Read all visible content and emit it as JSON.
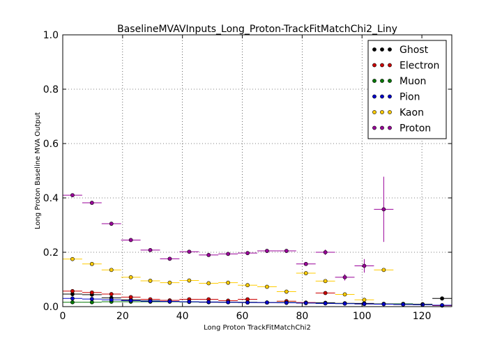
{
  "chart_data": {
    "type": "scatter",
    "title": "BaselineMVAVInputs_Long_Proton-TrackFitMatchChi2_Liny",
    "xlabel": "Long Proton TrackFitMatchChi2",
    "ylabel": "Long Proton Baseline MVA Output",
    "xlim": [
      0,
      130
    ],
    "ylim": [
      0,
      1.0
    ],
    "xticks": [
      "0",
      "20",
      "40",
      "60",
      "80",
      "100",
      "120"
    ],
    "yticks": [
      "0.0",
      "0.2",
      "0.4",
      "0.6",
      "0.8",
      "1.0"
    ],
    "grid": true,
    "legend_position": "top-right",
    "bin_edges": [
      0,
      6.5,
      13,
      19.5,
      26,
      32.5,
      39,
      45.5,
      52,
      58.5,
      65,
      71.5,
      78,
      84.5,
      91,
      97.5,
      104,
      110.5,
      117,
      123.5,
      130
    ],
    "series": [
      {
        "name": "Ghost",
        "color": "#000000",
        "values": [
          0.046,
          0.044,
          0.032,
          0.025,
          0.021,
          0.019,
          0.018,
          0.016,
          0.016,
          0.016,
          0.015,
          0.014,
          0.014,
          0.014,
          0.012,
          0.012,
          0.01,
          0.01,
          0.009,
          0.03,
          0.005
        ],
        "errors": [
          0.002,
          0.002,
          0.002,
          0.002,
          0.002,
          0.002,
          0.002,
          0.002,
          0.002,
          0.002,
          0.002,
          0.002,
          0.002,
          0.002,
          0.002,
          0.002,
          0.002,
          0.002,
          0.002,
          0.004,
          0.002
        ]
      },
      {
        "name": "Electron",
        "color": "#cc0000",
        "values": [
          0.057,
          0.052,
          0.046,
          0.035,
          0.027,
          0.023,
          0.027,
          0.027,
          0.022,
          0.027,
          0.015,
          0.02,
          0.015,
          0.05,
          0.012,
          0.01,
          0.01,
          0.008,
          0.008,
          0.004,
          0.004
        ],
        "errors": [
          0.003,
          0.003,
          0.003,
          0.003,
          0.003,
          0.003,
          0.003,
          0.003,
          0.003,
          0.003,
          0.003,
          0.003,
          0.003,
          0.005,
          0.003,
          0.003,
          0.003,
          0.003,
          0.003,
          0.003,
          0.003
        ]
      },
      {
        "name": "Muon",
        "color": "#007700",
        "values": [
          0.016,
          0.016,
          0.018,
          0.018,
          0.018,
          0.018,
          0.017,
          0.017,
          0.016,
          0.015,
          0.015,
          0.015,
          0.013,
          0.012,
          0.012,
          0.01,
          0.01,
          0.01,
          0.008,
          0.005,
          0.004
        ],
        "errors": [
          0.002,
          0.002,
          0.002,
          0.002,
          0.002,
          0.002,
          0.002,
          0.002,
          0.002,
          0.002,
          0.002,
          0.002,
          0.002,
          0.002,
          0.002,
          0.002,
          0.002,
          0.002,
          0.002,
          0.002,
          0.002
        ]
      },
      {
        "name": "Pion",
        "color": "#0000cc",
        "values": [
          0.03,
          0.028,
          0.025,
          0.022,
          0.02,
          0.019,
          0.018,
          0.017,
          0.016,
          0.015,
          0.015,
          0.014,
          0.013,
          0.012,
          0.011,
          0.01,
          0.009,
          0.008,
          0.007,
          0.005,
          0.004
        ],
        "errors": [
          0.001,
          0.001,
          0.001,
          0.001,
          0.001,
          0.001,
          0.001,
          0.001,
          0.001,
          0.001,
          0.001,
          0.001,
          0.001,
          0.001,
          0.001,
          0.001,
          0.001,
          0.001,
          0.001,
          0.001,
          0.001
        ]
      },
      {
        "name": "Kaon",
        "color": "#ffcc00",
        "values": [
          0.175,
          0.157,
          0.135,
          0.108,
          0.095,
          0.088,
          0.096,
          0.086,
          0.088,
          0.079,
          0.073,
          0.055,
          0.123,
          0.094,
          0.045,
          0.025,
          0.135
        ],
        "errors": [
          0.004,
          0.004,
          0.004,
          0.004,
          0.004,
          0.004,
          0.004,
          0.004,
          0.004,
          0.004,
          0.004,
          0.004,
          0.004,
          0.004,
          0.004,
          0.004,
          0.004
        ]
      },
      {
        "name": "Proton",
        "color": "#990099",
        "values": [
          0.41,
          0.382,
          0.305,
          0.245,
          0.208,
          0.176,
          0.202,
          0.19,
          0.194,
          0.197,
          0.205,
          0.205,
          0.157,
          0.2,
          0.108,
          0.15,
          0.358
        ],
        "errors": [
          0.004,
          0.004,
          0.004,
          0.004,
          0.004,
          0.004,
          0.004,
          0.004,
          0.004,
          0.004,
          0.004,
          0.004,
          0.006,
          0.01,
          0.012,
          0.025,
          0.12
        ]
      }
    ]
  }
}
